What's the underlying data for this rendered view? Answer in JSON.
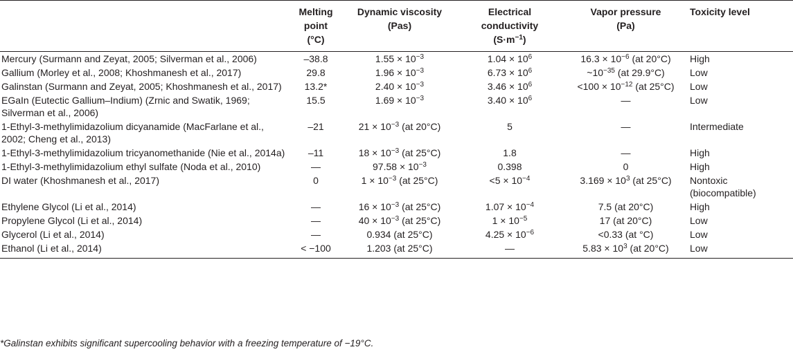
{
  "header": {
    "melting": [
      "Melting",
      "point",
      "(°C)"
    ],
    "viscosity": [
      "Dynamic viscosity",
      "(Pas)"
    ],
    "conductivity": [
      "Electrical",
      "conductivity",
      "(S·m",
      "−1",
      ")"
    ],
    "vapor": [
      "Vapor pressure",
      "(Pa)"
    ],
    "toxicity": "Toxicity level"
  },
  "rows": [
    {
      "name": "Mercury (Surmann and Zeyat, 2005; Silverman et al., 2006)",
      "melting": "–38.8",
      "visc": [
        "1.55 × 10",
        "−3",
        ""
      ],
      "cond": [
        "1.04 × 10",
        "6",
        ""
      ],
      "vapor": [
        "16.3 × 10",
        "−6",
        " (at 20°C)"
      ],
      "tox": "High"
    },
    {
      "name": "Gallium (Morley et al., 2008; Khoshmanesh et al., 2017)",
      "melting": "29.8",
      "visc": [
        "1.96 × 10",
        "−3",
        ""
      ],
      "cond": [
        "6.73 × 10",
        "6",
        ""
      ],
      "vapor": [
        "~10",
        "−35",
        " (at 29.9°C)"
      ],
      "tox": "Low"
    },
    {
      "name": "Galinstan (Surmann and Zeyat, 2005; Khoshmanesh et al., 2017)",
      "melting": "13.2*",
      "visc": [
        "2.40 × 10",
        "−3",
        ""
      ],
      "cond": [
        "3.46 × 10",
        "6",
        ""
      ],
      "vapor": [
        "<100 × 10",
        "−12",
        " (at 25°C)"
      ],
      "tox": "Low"
    },
    {
      "name": "EGaIn (Eutectic Gallium–Indium) (Zrnic and Swatik, 1969; Silverman et al., 2006)",
      "melting": "15.5",
      "visc": [
        "1.69 × 10",
        "−3",
        ""
      ],
      "cond": [
        "3.40 × 10",
        "6",
        ""
      ],
      "vapor": [
        "—",
        "",
        ""
      ],
      "tox": "Low"
    },
    {
      "name": "1-Ethyl-3-methylimidazolium dicyanamide (MacFarlane et al., 2002; Cheng et al., 2013)",
      "melting": "–21",
      "visc": [
        "21 × 10",
        "−3",
        " (at 20°C)"
      ],
      "cond": [
        "5",
        "",
        ""
      ],
      "vapor": [
        "—",
        "",
        ""
      ],
      "tox": "Intermediate"
    },
    {
      "name": "1-Ethyl-3-methylimidazolium tricyanomethanide (Nie et al., 2014a)",
      "melting": "–11",
      "visc": [
        "18 × 10",
        "−3",
        " (at 25°C)"
      ],
      "cond": [
        "1.8",
        "",
        ""
      ],
      "vapor": [
        "—",
        "",
        ""
      ],
      "tox": "High"
    },
    {
      "name": "1-Ethyl-3-methylimidazolium ethyl sulfate (Noda et al., 2010)",
      "melting": "—",
      "visc": [
        "97.58 × 10",
        "−3",
        ""
      ],
      "cond": [
        "0.398",
        "",
        ""
      ],
      "vapor": [
        "0",
        "",
        ""
      ],
      "tox": "High"
    },
    {
      "name": "DI water (Khoshmanesh et al., 2017)",
      "melting": "0",
      "visc": [
        "1 × 10",
        "−3",
        " (at 25°C)"
      ],
      "cond": [
        "<5 × 10",
        "−4",
        ""
      ],
      "vapor": [
        "3.169 × 10",
        "3",
        " (at 25°C)"
      ],
      "tox": "Nontoxic (biocompatible)"
    },
    {
      "name": "Ethylene Glycol (Li et al., 2014)",
      "melting": "—",
      "visc": [
        "16 × 10",
        "−3",
        " (at 25°C)"
      ],
      "cond": [
        "1.07 × 10",
        "−4",
        ""
      ],
      "vapor": [
        "7.5 (at 20°C)",
        "",
        ""
      ],
      "tox": "High"
    },
    {
      "name": "Propylene Glycol (Li et al., 2014)",
      "melting": "—",
      "visc": [
        "40 × 10",
        "−3",
        " (at 25°C)"
      ],
      "cond": [
        "1 × 10",
        "−5",
        ""
      ],
      "vapor": [
        "17 (at 20°C)",
        "",
        ""
      ],
      "tox": "Low"
    },
    {
      "name": "Glycerol (Li et al., 2014)",
      "melting": "—",
      "visc": [
        "0.934 (at 25°C)",
        "",
        ""
      ],
      "cond": [
        "4.25 × 10",
        "−6",
        ""
      ],
      "vapor": [
        "<0.33 (at °C)",
        "",
        ""
      ],
      "tox": "Low"
    },
    {
      "name": "Ethanol (Li et al., 2014)",
      "melting": "< −100",
      "visc": [
        "1.203 (at 25°C)",
        "",
        ""
      ],
      "cond": [
        "—",
        "",
        ""
      ],
      "vapor": [
        "5.83 × 10",
        "3",
        " (at 20°C)"
      ],
      "tox": "Low"
    }
  ],
  "footnote": "*Galinstan exhibits significant supercooling behavior with a freezing temperature of −19°C."
}
